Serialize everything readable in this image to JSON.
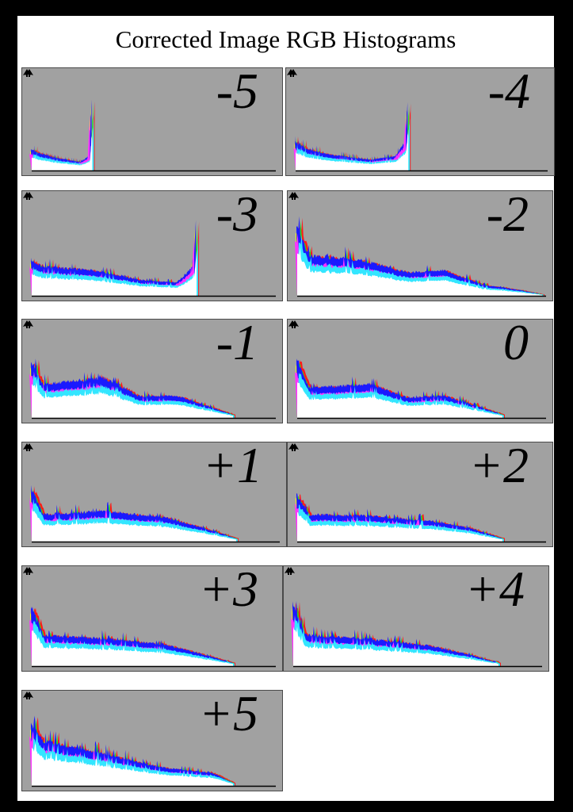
{
  "title": "Corrected Image RGB Histograms",
  "colors": {
    "panel_bg": "#a1a1a1",
    "white": "#ffffff",
    "cyan": "#33e6ff",
    "magenta": "#ff33ff",
    "blue": "#1a1aff",
    "green": "#22dd22",
    "yellow": "#ffff00",
    "red": "#ff1a1a",
    "axis": "#000000"
  },
  "icons": {
    "left_corner": "clipping-warning-triangle-icon",
    "right_corner": "clipping-warning-triangle-icon"
  },
  "chart_data": [
    {
      "type": "area",
      "label": "-5",
      "x_range": [
        0,
        255
      ],
      "extent": 0.25,
      "peaks": [
        [
          0.0,
          0.3
        ],
        [
          0.03,
          0.25
        ],
        [
          0.1,
          0.18
        ],
        [
          0.2,
          0.12
        ],
        [
          0.24,
          0.2
        ],
        [
          0.25,
          1.0
        ]
      ]
    },
    {
      "type": "area",
      "label": "-4",
      "x_range": [
        0,
        255
      ],
      "extent": 0.45,
      "peaks": [
        [
          0.0,
          0.4
        ],
        [
          0.05,
          0.3
        ],
        [
          0.15,
          0.22
        ],
        [
          0.3,
          0.15
        ],
        [
          0.4,
          0.2
        ],
        [
          0.44,
          0.4
        ],
        [
          0.45,
          1.0
        ]
      ]
    },
    {
      "type": "area",
      "label": "-3",
      "x_range": [
        0,
        255
      ],
      "extent": 0.68,
      "peaks": [
        [
          0.0,
          0.5
        ],
        [
          0.05,
          0.4
        ],
        [
          0.25,
          0.35
        ],
        [
          0.45,
          0.22
        ],
        [
          0.6,
          0.18
        ],
        [
          0.67,
          0.4
        ],
        [
          0.68,
          1.0
        ]
      ]
    },
    {
      "type": "area",
      "label": "-2",
      "x_range": [
        0,
        255
      ],
      "extent": 0.99,
      "peaks": [
        [
          0.0,
          0.95
        ],
        [
          0.05,
          0.55
        ],
        [
          0.25,
          0.5
        ],
        [
          0.45,
          0.32
        ],
        [
          0.6,
          0.35
        ],
        [
          0.75,
          0.15
        ],
        [
          0.9,
          0.08
        ],
        [
          0.99,
          0.02
        ]
      ]
    },
    {
      "type": "area",
      "label": "-1",
      "x_range": [
        0,
        255
      ],
      "extent": 0.83,
      "peaks": [
        [
          0.0,
          0.85
        ],
        [
          0.05,
          0.5
        ],
        [
          0.3,
          0.6
        ],
        [
          0.45,
          0.32
        ],
        [
          0.6,
          0.33
        ],
        [
          0.75,
          0.15
        ],
        [
          0.83,
          0.05
        ]
      ]
    },
    {
      "type": "area",
      "label": "0",
      "x_range": [
        0,
        255
      ],
      "extent": 0.83,
      "peaks": [
        [
          0.0,
          0.9
        ],
        [
          0.05,
          0.45
        ],
        [
          0.3,
          0.5
        ],
        [
          0.45,
          0.3
        ],
        [
          0.6,
          0.33
        ],
        [
          0.75,
          0.15
        ],
        [
          0.83,
          0.05
        ]
      ]
    },
    {
      "type": "area",
      "label": "+1",
      "x_range": [
        0,
        255
      ],
      "extent": 0.83,
      "peaks": [
        [
          0.0,
          0.8
        ],
        [
          0.05,
          0.4
        ],
        [
          0.3,
          0.45
        ],
        [
          0.55,
          0.35
        ],
        [
          0.7,
          0.2
        ],
        [
          0.83,
          0.05
        ]
      ]
    },
    {
      "type": "area",
      "label": "+2",
      "x_range": [
        0,
        255
      ],
      "extent": 0.83,
      "peaks": [
        [
          0.0,
          0.7
        ],
        [
          0.05,
          0.4
        ],
        [
          0.3,
          0.38
        ],
        [
          0.55,
          0.3
        ],
        [
          0.7,
          0.2
        ],
        [
          0.83,
          0.05
        ]
      ]
    },
    {
      "type": "area",
      "label": "+3",
      "x_range": [
        0,
        255
      ],
      "extent": 0.83,
      "peaks": [
        [
          0.0,
          0.9
        ],
        [
          0.05,
          0.45
        ],
        [
          0.3,
          0.4
        ],
        [
          0.55,
          0.32
        ],
        [
          0.7,
          0.18
        ],
        [
          0.83,
          0.05
        ]
      ]
    },
    {
      "type": "area",
      "label": "+4",
      "x_range": [
        0,
        255
      ],
      "extent": 0.83,
      "peaks": [
        [
          0.0,
          0.95
        ],
        [
          0.05,
          0.45
        ],
        [
          0.3,
          0.4
        ],
        [
          0.55,
          0.3
        ],
        [
          0.7,
          0.18
        ],
        [
          0.83,
          0.05
        ]
      ]
    },
    {
      "type": "area",
      "label": "+5",
      "x_range": [
        0,
        255
      ],
      "extent": 0.83,
      "peaks": [
        [
          0.0,
          0.95
        ],
        [
          0.05,
          0.7
        ],
        [
          0.3,
          0.5
        ],
        [
          0.55,
          0.28
        ],
        [
          0.75,
          0.2
        ],
        [
          0.83,
          0.05
        ]
      ]
    }
  ]
}
